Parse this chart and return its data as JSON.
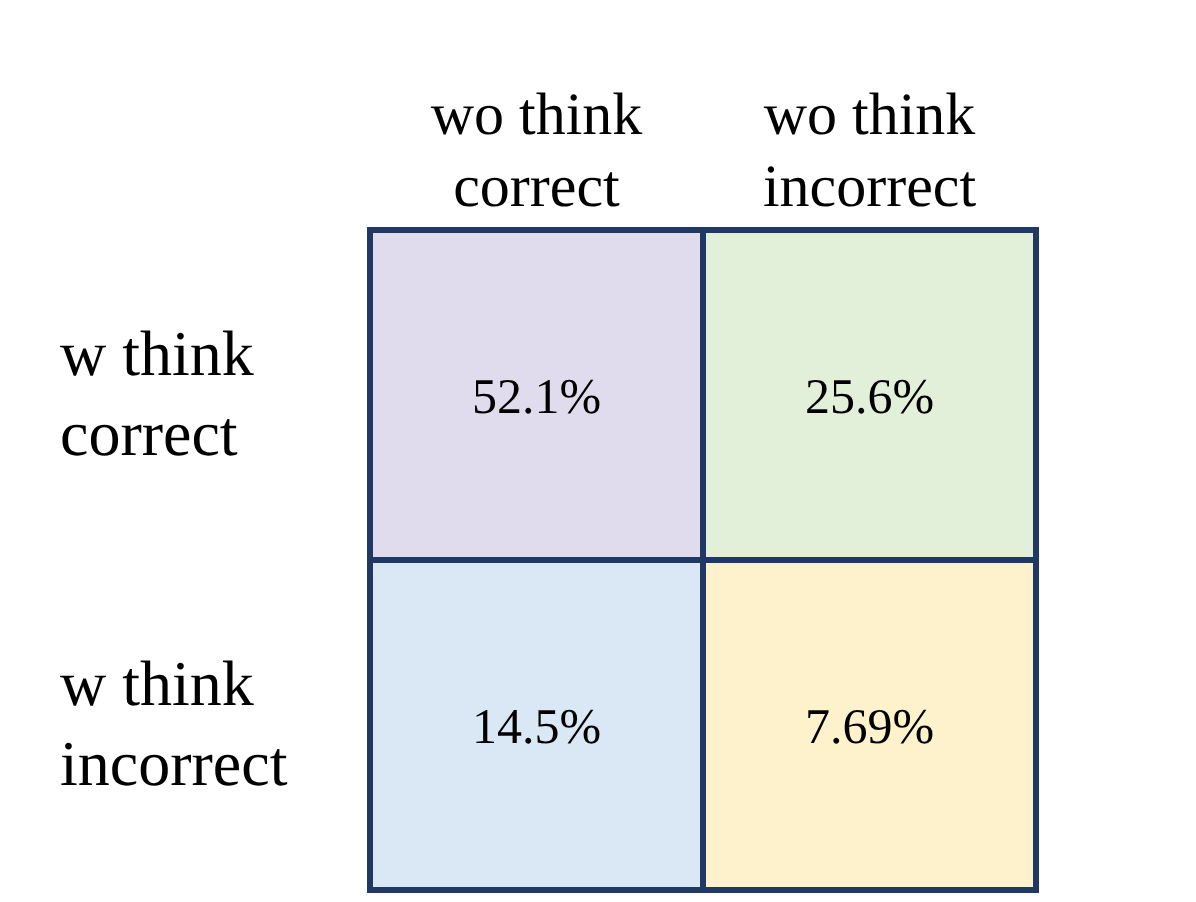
{
  "chart_data": {
    "type": "heatmap",
    "categories": [
      "wo think correct",
      "wo think incorrect"
    ],
    "y_categories": [
      "w think correct",
      "w think incorrect"
    ],
    "cells": [
      [
        52.1,
        25.6
      ],
      [
        14.5,
        7.69
      ]
    ],
    "cell_labels": [
      [
        "52.1%",
        "25.6%"
      ],
      [
        "14.5%",
        "7.69%"
      ]
    ],
    "colors": [
      "#e0dcee",
      "#e2efd9",
      "#dae8f5",
      "#fef2cc"
    ]
  }
}
